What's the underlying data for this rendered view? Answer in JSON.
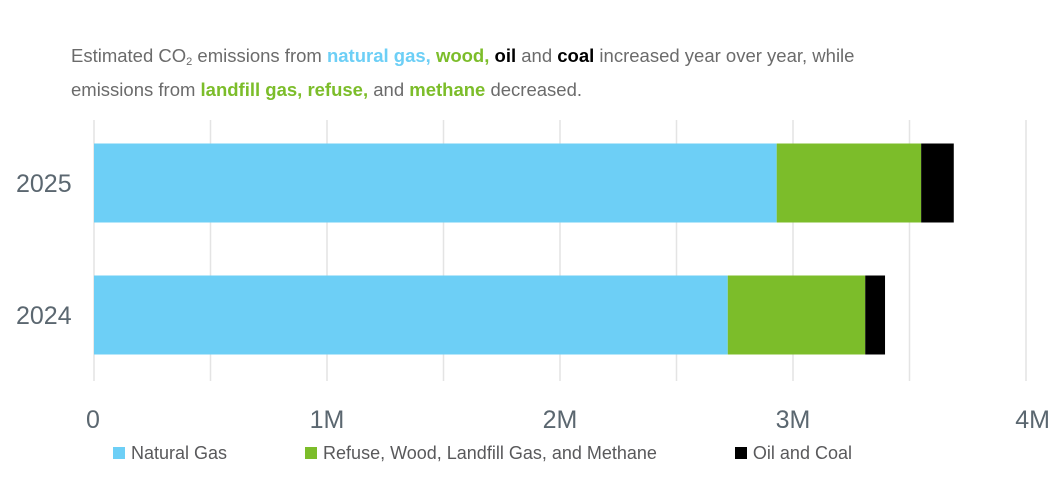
{
  "subtitle": {
    "segments": [
      {
        "text": "Estimated CO",
        "style": "plain"
      },
      {
        "text": "2",
        "style": "sub"
      },
      {
        "text": " emissions from ",
        "style": "plain"
      },
      {
        "text": "natural gas,",
        "style": "natural_gas"
      },
      {
        "text": " ",
        "style": "plain"
      },
      {
        "text": "wood,",
        "style": "renewable"
      },
      {
        "text": " ",
        "style": "plain"
      },
      {
        "text": "oil",
        "style": "oil_coal"
      },
      {
        "text": " and ",
        "style": "plain"
      },
      {
        "text": "coal",
        "style": "oil_coal"
      },
      {
        "text": " increased year over year, while",
        "style": "plain"
      },
      {
        "text": "\n",
        "style": "break"
      },
      {
        "text": "emissions from ",
        "style": "plain"
      },
      {
        "text": "landfill gas, refuse,",
        "style": "renewable"
      },
      {
        "text": " and ",
        "style": "plain"
      },
      {
        "text": "methane",
        "style": "renewable"
      },
      {
        "text": " decreased.",
        "style": "plain"
      }
    ]
  },
  "colors": {
    "natural_gas": "#6dcff6",
    "renewable": "#7cbd2a",
    "oil_coal": "#000000",
    "gridline": "#e4e4e4",
    "axis_text": "#5b6770"
  },
  "chart_data": {
    "type": "bar",
    "orientation": "horizontal",
    "stacked": true,
    "categories": [
      "2025",
      "2024"
    ],
    "series": [
      {
        "name": "Natural Gas",
        "color": "#6dcff6",
        "values": [
          2930000,
          2720000
        ]
      },
      {
        "name": "Refuse, Wood, Landfill Gas, and Methane",
        "color": "#7cbd2a",
        "values": [
          620000,
          590000
        ]
      },
      {
        "name": "Oil and Coal",
        "color": "#000000",
        "values": [
          140000,
          85000
        ]
      }
    ],
    "xlim": [
      0,
      4000000
    ],
    "x_ticks": [
      {
        "value": 0,
        "label": "0"
      },
      {
        "value": 1000000,
        "label": "1M"
      },
      {
        "value": 2000000,
        "label": "2M"
      },
      {
        "value": 3000000,
        "label": "3M"
      },
      {
        "value": 4000000,
        "label": "4M"
      }
    ],
    "minor_gridlines": [
      500000,
      1500000,
      2500000,
      3500000
    ],
    "grid": true,
    "legend": "bottom"
  }
}
